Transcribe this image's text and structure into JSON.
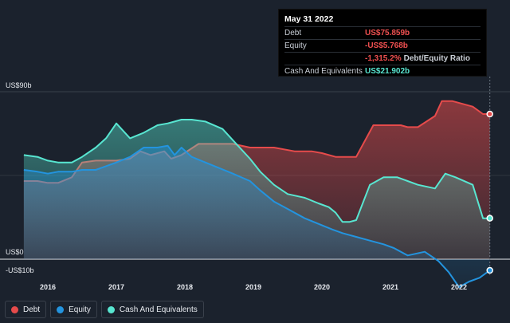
{
  "tooltip": {
    "date": "May 31 2022",
    "debt_label": "Debt",
    "debt_value": "US$75.859b",
    "equity_label": "Equity",
    "equity_value": "-US$5.768b",
    "ratio_value": "-1,315.2%",
    "ratio_label": "Debt/Equity Ratio",
    "cash_label": "Cash And Equivalents",
    "cash_value": "US$21.902b"
  },
  "colors": {
    "debt": "#e64b4b",
    "equity": "#2394df",
    "cash": "#58e6d1",
    "background": "#1b222d"
  },
  "chart_data": {
    "type": "area",
    "x_tick_labels": [
      "2016",
      "2017",
      "2018",
      "2019",
      "2020",
      "2021",
      "2022"
    ],
    "y_tick_labels": [
      "US$90b",
      "US$0",
      "-US$10b"
    ],
    "ylim": [
      -10,
      90
    ],
    "xlim": [
      2015.6,
      2022.6
    ],
    "series": [
      {
        "name": "Debt",
        "color": "#e64b4b",
        "x": [
          2015.65,
          2015.85,
          2016.0,
          2016.15,
          2016.35,
          2016.5,
          2016.7,
          2017.0,
          2017.2,
          2017.35,
          2017.5,
          2017.7,
          2017.8,
          2017.95,
          2018.2,
          2018.5,
          2018.7,
          2018.95,
          2019.1,
          2019.3,
          2019.6,
          2019.75,
          2019.85,
          2020.0,
          2020.2,
          2020.3,
          2020.4,
          2020.5,
          2020.75,
          2021.0,
          2021.15,
          2021.25,
          2021.4,
          2021.65,
          2021.75,
          2021.9,
          2022.2,
          2022.35,
          2022.45
        ],
        "values": [
          42,
          42,
          41,
          41,
          44,
          52,
          53,
          53,
          54,
          58,
          56,
          58,
          54,
          56,
          62,
          62,
          62,
          60,
          60,
          60,
          58,
          58,
          58,
          57,
          55,
          55,
          55,
          55,
          72,
          72,
          72,
          71,
          71,
          77,
          85,
          85,
          82,
          78,
          78
        ]
      },
      {
        "name": "Equity",
        "color": "#2394df",
        "x": [
          2015.65,
          2015.85,
          2016.0,
          2016.15,
          2016.35,
          2016.5,
          2016.7,
          2017.0,
          2017.2,
          2017.4,
          2017.6,
          2017.75,
          2017.85,
          2017.95,
          2018.1,
          2018.3,
          2018.5,
          2018.7,
          2018.95,
          2019.1,
          2019.3,
          2019.5,
          2019.75,
          2019.95,
          2020.15,
          2020.3,
          2020.5,
          2020.7,
          2020.9,
          2021.05,
          2021.25,
          2021.5,
          2021.7,
          2021.85,
          2022.0,
          2022.15,
          2022.3,
          2022.45
        ],
        "values": [
          48,
          47,
          46,
          47,
          47,
          48,
          48,
          52,
          55,
          60,
          60,
          61,
          56,
          60,
          55,
          52,
          49,
          46,
          42,
          37,
          31,
          27,
          22,
          19,
          16,
          14,
          12,
          10,
          8,
          6,
          2,
          4,
          -1,
          -7,
          -15,
          -12,
          -10,
          -6
        ]
      },
      {
        "name": "Cash And Equivalents",
        "color": "#58e6d1",
        "x": [
          2015.65,
          2015.85,
          2016.0,
          2016.15,
          2016.35,
          2016.5,
          2016.7,
          2016.85,
          2017.0,
          2017.2,
          2017.4,
          2017.6,
          2017.75,
          2017.85,
          2017.95,
          2018.1,
          2018.3,
          2018.55,
          2018.75,
          2018.95,
          2019.1,
          2019.3,
          2019.5,
          2019.75,
          2019.95,
          2020.1,
          2020.2,
          2020.3,
          2020.4,
          2020.5,
          2020.7,
          2020.9,
          2021.1,
          2021.25,
          2021.4,
          2021.65,
          2021.8,
          2021.95,
          2022.2,
          2022.35,
          2022.45
        ],
        "values": [
          56,
          55,
          53,
          52,
          52,
          55,
          60,
          65,
          73,
          65,
          68,
          72,
          73,
          74,
          75,
          75,
          74,
          70,
          62,
          54,
          47,
          40,
          35,
          33,
          30,
          28,
          25,
          20,
          20,
          21,
          40,
          44,
          44,
          42,
          40,
          38,
          46,
          44,
          40,
          22,
          22
        ]
      }
    ]
  },
  "legend": {
    "debt_label": "Debt",
    "equity_label": "Equity",
    "cash_label": "Cash And Equivalents"
  }
}
